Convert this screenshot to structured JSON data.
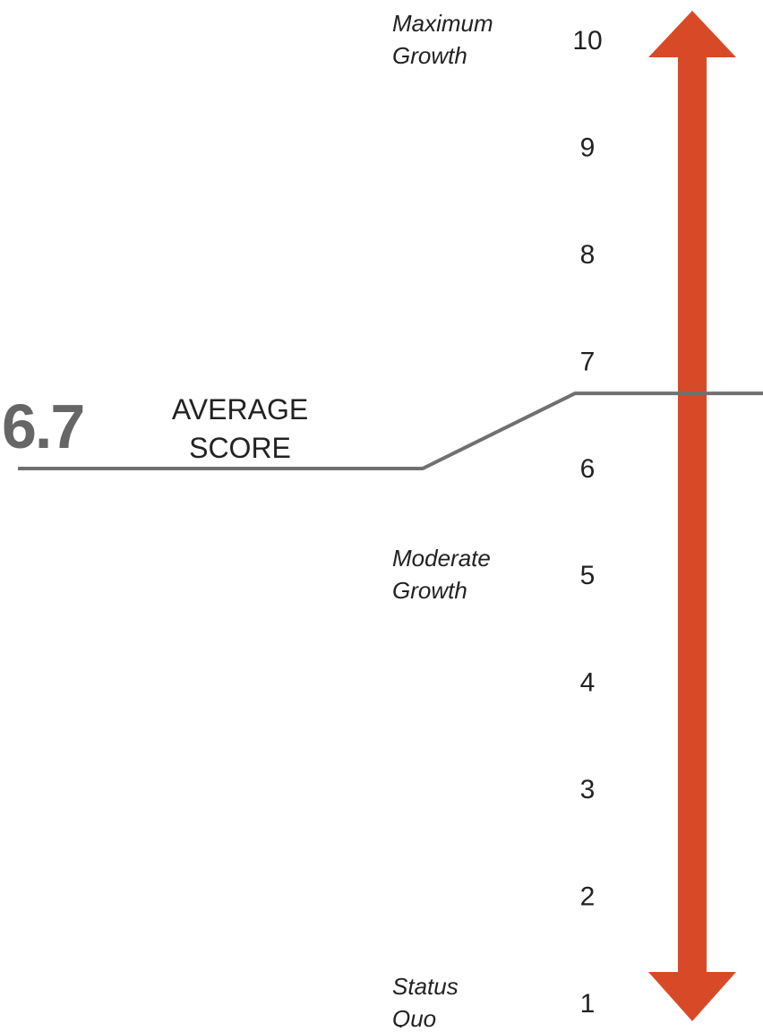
{
  "colors": {
    "arrow": "#d84a27",
    "line": "#707070",
    "big_number": "#666666",
    "text": "#222222"
  },
  "chart_data": {
    "type": "scale",
    "ticks": [
      "1",
      "2",
      "3",
      "4",
      "5",
      "6",
      "7",
      "8",
      "9",
      "10"
    ],
    "range": [
      1,
      10
    ],
    "marker_value": 6.7,
    "marker_label_value": "6.7",
    "marker_caption": [
      "AVERAGE",
      "SCORE"
    ],
    "annotations": [
      {
        "value": 10,
        "lines": [
          "Maximum",
          "Growth"
        ]
      },
      {
        "value": 5,
        "lines": [
          "Moderate",
          "Growth"
        ]
      },
      {
        "value": 1,
        "lines": [
          "Status",
          "Quo"
        ]
      }
    ]
  }
}
